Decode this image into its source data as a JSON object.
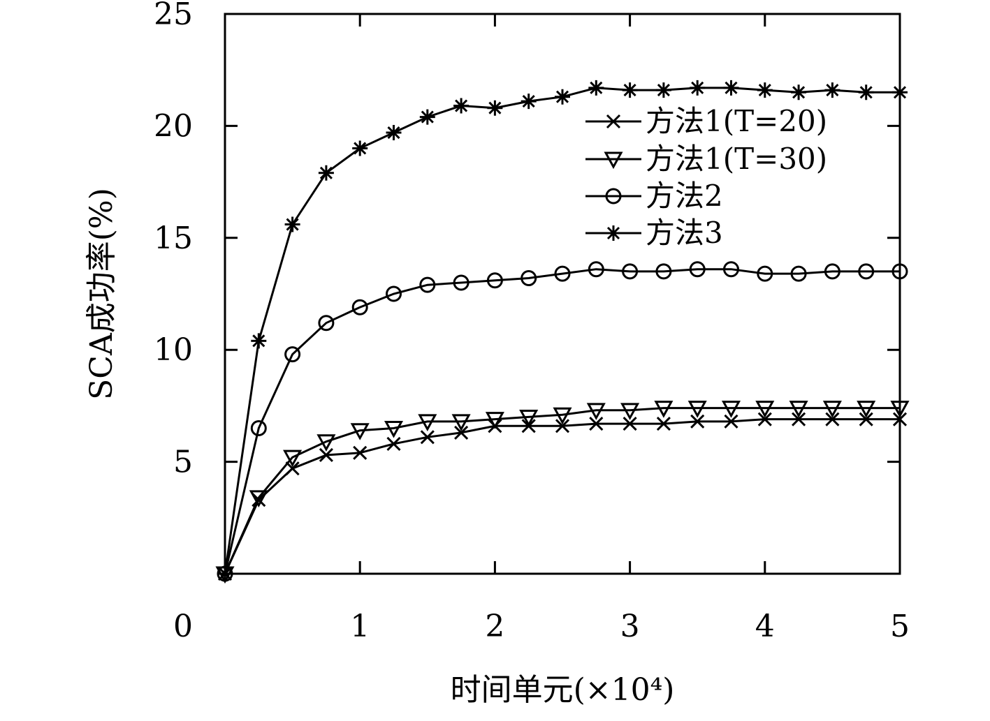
{
  "chart_data": {
    "type": "line",
    "title": "",
    "xlabel": "时间单元(×10⁴)",
    "ylabel": "SCA成功率(%)",
    "xlim": [
      0,
      5
    ],
    "ylim": [
      0,
      25
    ],
    "xticks": [
      0,
      1,
      2,
      3,
      4,
      5
    ],
    "yticks": [
      5,
      10,
      15,
      20,
      25
    ],
    "x_tick_labels": [
      "0",
      "1",
      "2",
      "3",
      "4",
      "5"
    ],
    "y_tick_labels": [
      "5",
      "10",
      "15",
      "20",
      "25"
    ],
    "grid": false,
    "legend_position": "top-right",
    "x": [
      0,
      0.25,
      0.5,
      0.75,
      1.0,
      1.25,
      1.5,
      1.75,
      2.0,
      2.25,
      2.5,
      2.75,
      3.0,
      3.25,
      3.5,
      3.75,
      4.0,
      4.25,
      4.5,
      4.75,
      5.0
    ],
    "series": [
      {
        "name": "方法1(T=20)",
        "marker": "x",
        "color": "#000000",
        "values": [
          0,
          3.3,
          4.7,
          5.3,
          5.4,
          5.8,
          6.1,
          6.3,
          6.6,
          6.6,
          6.6,
          6.7,
          6.7,
          6.7,
          6.8,
          6.8,
          6.9,
          6.9,
          6.9,
          6.9,
          6.9
        ]
      },
      {
        "name": "方法1(T=30)",
        "marker": "triangle-down",
        "color": "#000000",
        "values": [
          0,
          3.4,
          5.2,
          5.9,
          6.4,
          6.5,
          6.8,
          6.8,
          6.9,
          7.0,
          7.1,
          7.3,
          7.3,
          7.4,
          7.4,
          7.4,
          7.4,
          7.4,
          7.4,
          7.4,
          7.4
        ]
      },
      {
        "name": "方法2",
        "marker": "circle",
        "color": "#000000",
        "values": [
          0,
          6.5,
          9.8,
          11.2,
          11.9,
          12.5,
          12.9,
          13.0,
          13.1,
          13.2,
          13.4,
          13.6,
          13.5,
          13.5,
          13.6,
          13.6,
          13.4,
          13.4,
          13.5,
          13.5,
          13.5
        ]
      },
      {
        "name": "方法3",
        "marker": "asterisk",
        "color": "#000000",
        "values": [
          0,
          10.4,
          15.6,
          17.9,
          19.0,
          19.7,
          20.4,
          20.9,
          20.8,
          21.1,
          21.3,
          21.7,
          21.6,
          21.6,
          21.7,
          21.7,
          21.6,
          21.5,
          21.6,
          21.5,
          21.5
        ]
      }
    ]
  }
}
